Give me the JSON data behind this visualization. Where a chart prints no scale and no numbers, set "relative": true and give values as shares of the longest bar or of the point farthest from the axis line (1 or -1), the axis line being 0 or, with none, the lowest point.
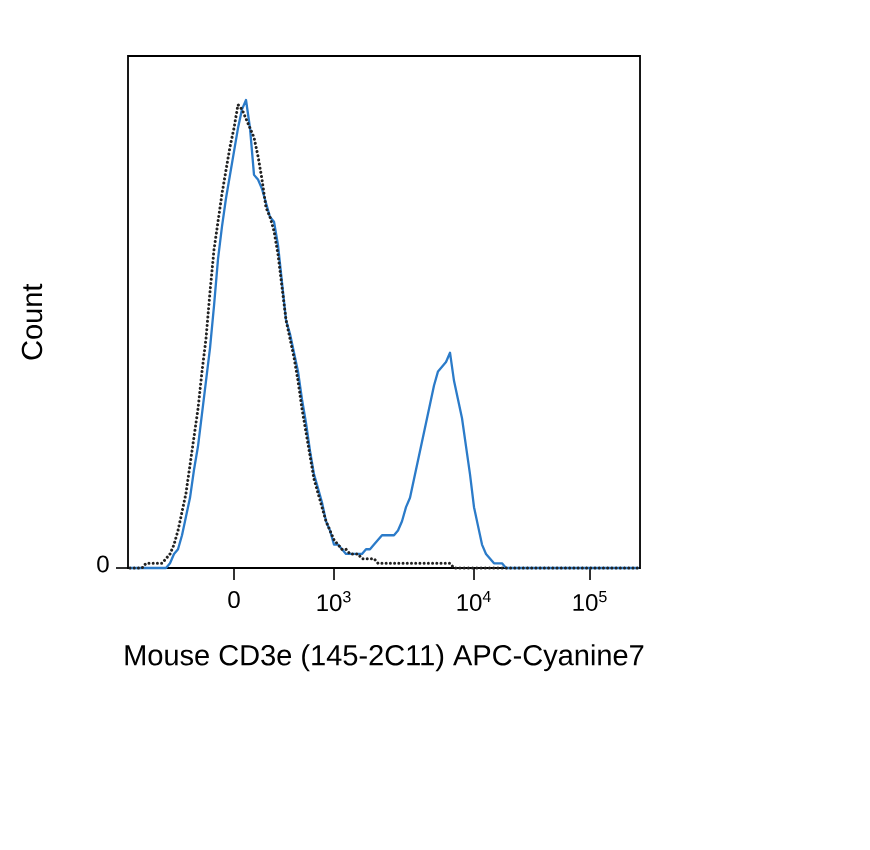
{
  "chart_data": {
    "type": "line",
    "relative": true,
    "xlabel": "Mouse CD3e (145-2C11) APC-Cyanine7",
    "ylabel": "Count",
    "categories": [
      null,
      null,
      null,
      null,
      null,
      null,
      null,
      null,
      null,
      null,
      null,
      null,
      null,
      null,
      null,
      null,
      null,
      null,
      null,
      null,
      null,
      null,
      null,
      null,
      null,
      null,
      "0",
      null,
      null,
      null,
      null,
      null,
      null,
      null,
      null,
      null,
      null,
      null,
      null,
      null,
      null,
      null,
      null,
      null,
      null,
      null,
      null,
      null,
      null,
      null,
      null,
      "10$^{3}$",
      null,
      null,
      null,
      null,
      null,
      null,
      null,
      null,
      null,
      null,
      null,
      null,
      null,
      null,
      null,
      null,
      null,
      null,
      null,
      null,
      null,
      null,
      null,
      null,
      null,
      null,
      null,
      null,
      null,
      null,
      null,
      null,
      null,
      null,
      "10$^{4}$",
      null,
      null,
      null,
      null,
      null,
      null,
      null,
      null,
      null,
      null,
      null,
      null,
      null,
      null,
      null,
      null,
      null,
      null,
      null,
      null,
      null,
      null,
      null,
      null,
      null,
      null,
      null,
      null,
      "10$^{5}$",
      null,
      null,
      null,
      null,
      null,
      null,
      null,
      null,
      null,
      null,
      null,
      null
    ],
    "annotations": [
      "0"
    ],
    "series": [
      {
        "color": "#2b7bc9",
        "line_style": "solid",
        "values": [
          0,
          0,
          0,
          0,
          0,
          0,
          0,
          0,
          0,
          0,
          0.01,
          0.03,
          0.04,
          0.07,
          0.11,
          0.15,
          0.21,
          0.26,
          0.33,
          0.4,
          0.47,
          0.56,
          0.66,
          0.73,
          0.79,
          0.84,
          0.89,
          0.94,
          0.98,
          1,
          0.94,
          0.84,
          0.83,
          0.81,
          0.78,
          0.75,
          0.74,
          0.69,
          0.61,
          0.53,
          0.5,
          0.46,
          0.42,
          0.36,
          0.31,
          0.25,
          0.2,
          0.17,
          0.14,
          0.1,
          0.08,
          0.05,
          0.05,
          0.04,
          0.03,
          0.03,
          0.03,
          0.03,
          0.03,
          0.04,
          0.04,
          0.05,
          0.06,
          0.07,
          0.07,
          0.07,
          0.07,
          0.08,
          0.1,
          0.13,
          0.15,
          0.19,
          0.23,
          0.27,
          0.31,
          0.35,
          0.39,
          0.42,
          0.43,
          0.44,
          0.46,
          0.4,
          0.36,
          0.32,
          0.26,
          0.2,
          0.13,
          0.09,
          0.05,
          0.03,
          0.02,
          0.01,
          0.01,
          0.01,
          0,
          0,
          0,
          0,
          0,
          0,
          0,
          0,
          0,
          0,
          0,
          0,
          0,
          0,
          0,
          0,
          0,
          0,
          0,
          0,
          0,
          0,
          0,
          0,
          0,
          0,
          0,
          0,
          0,
          0,
          0,
          0,
          0,
          0
        ]
      },
      {
        "color": "#222222",
        "line_style": "dotted",
        "values": [
          0,
          0,
          0,
          0,
          0.01,
          0.01,
          0.01,
          0.01,
          0.01,
          0.02,
          0.03,
          0.05,
          0.08,
          0.12,
          0.16,
          0.22,
          0.28,
          0.34,
          0.42,
          0.49,
          0.59,
          0.68,
          0.74,
          0.8,
          0.85,
          0.9,
          0.94,
          0.99,
          0.98,
          0.96,
          0.94,
          0.92,
          0.88,
          0.83,
          0.77,
          0.75,
          0.72,
          0.67,
          0.6,
          0.53,
          0.49,
          0.45,
          0.4,
          0.34,
          0.29,
          0.24,
          0.19,
          0.16,
          0.13,
          0.1,
          0.08,
          0.06,
          0.05,
          0.04,
          0.04,
          0.03,
          0.03,
          0.03,
          0.02,
          0.02,
          0.02,
          0.02,
          0.01,
          0.01,
          0.01,
          0.01,
          0.01,
          0.01,
          0.01,
          0.01,
          0.01,
          0.01,
          0.01,
          0.01,
          0.01,
          0.01,
          0.01,
          0.01,
          0.01,
          0.01,
          0.01,
          0,
          0,
          0,
          0,
          0,
          0,
          0,
          0,
          0,
          0,
          0,
          0,
          0,
          0,
          0,
          0,
          0,
          0,
          0,
          0,
          0,
          0,
          0,
          0,
          0,
          0,
          0,
          0,
          0,
          0,
          0,
          0,
          0,
          0,
          0,
          0,
          0,
          0,
          0,
          0,
          0,
          0,
          0,
          0,
          0,
          0,
          0
        ]
      }
    ]
  }
}
